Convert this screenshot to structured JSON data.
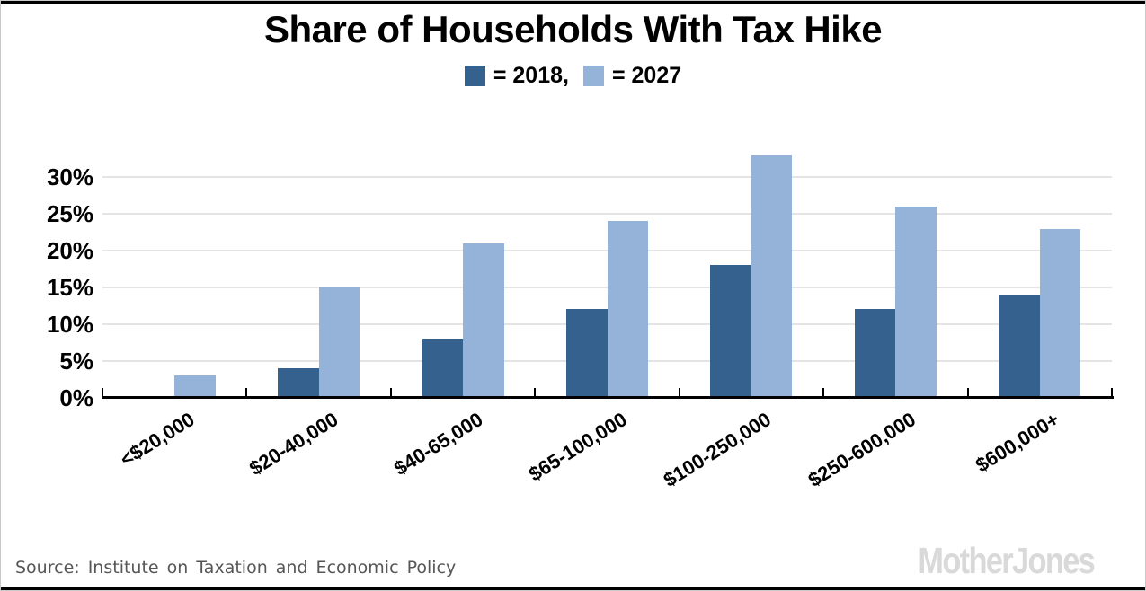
{
  "page": {
    "title": "Share of Households With Tax Hike"
  },
  "legend": {
    "items": [
      {
        "year": "2018",
        "label": "= 2018,",
        "color": "#35618F"
      },
      {
        "year": "2027",
        "label": "= 2027",
        "color": "#95B3D8"
      }
    ]
  },
  "chart_data": {
    "type": "bar",
    "title": "Share of Households With Tax Hike",
    "categories": [
      "<$20,000",
      "$20-40,000",
      "$40-65,000",
      "$65-100,000",
      "$100-250,000",
      "$250-600,000",
      "$600,000+"
    ],
    "series": [
      {
        "name": "2018",
        "color": "#35618F",
        "values": [
          0,
          4,
          8,
          12,
          18,
          12,
          14
        ]
      },
      {
        "name": "2027",
        "color": "#95B3D8",
        "values": [
          3,
          15,
          21,
          24,
          33,
          26,
          23
        ]
      }
    ],
    "unit": "%",
    "y_ticks": [
      {
        "value": 0,
        "label": "0%"
      },
      {
        "value": 5,
        "label": "5%"
      },
      {
        "value": 10,
        "label": "10%"
      },
      {
        "value": 15,
        "label": "15%"
      },
      {
        "value": 20,
        "label": "20%"
      },
      {
        "value": 25,
        "label": "25%"
      },
      {
        "value": 30,
        "label": "30%"
      }
    ],
    "ylim": [
      0,
      34
    ],
    "grid": true,
    "legend_position": "top",
    "xlabel": "",
    "ylabel": ""
  },
  "footer": {
    "source": "Source: Institute on Taxation and Economic Policy",
    "branding": "MotherJones"
  }
}
